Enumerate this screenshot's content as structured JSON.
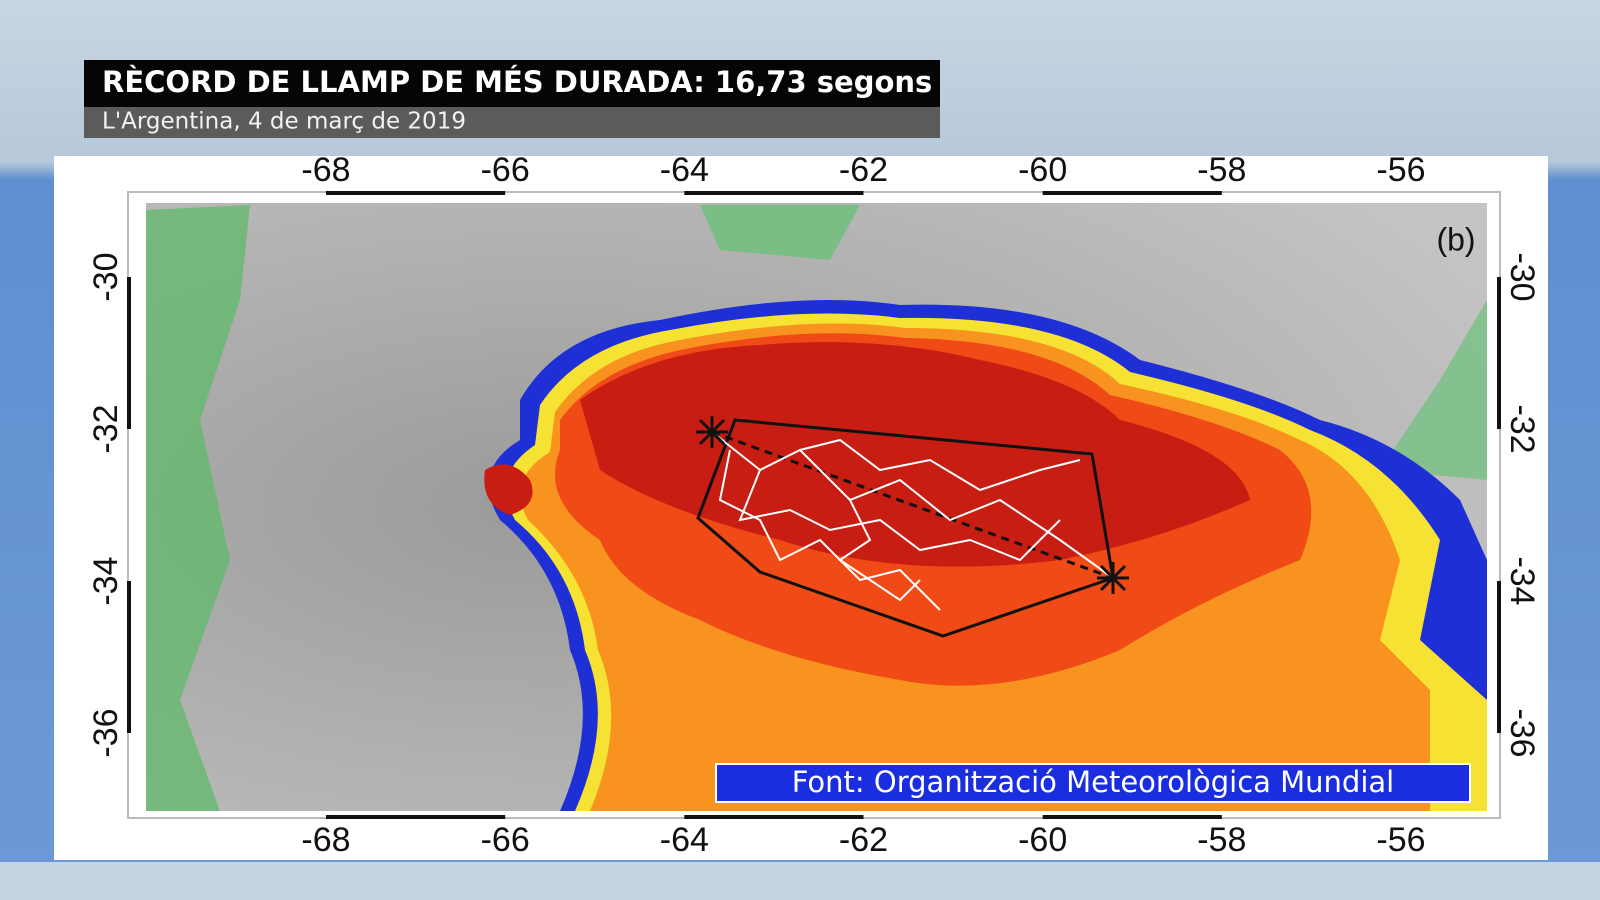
{
  "header": {
    "title": "RÈCORD DE LLAMP DE MÉS DURADA: 16,73 segons",
    "subtitle": "L'Argentina, 4 de març de 2019"
  },
  "map": {
    "lon_ticks": [
      -68,
      -66,
      -64,
      -62,
      -60,
      -58,
      -56
    ],
    "lat_ticks": [
      -30,
      -32,
      -34,
      -36
    ],
    "panel_label": "(b)"
  },
  "source": "Font: Organització Meteorològica Mundial"
}
